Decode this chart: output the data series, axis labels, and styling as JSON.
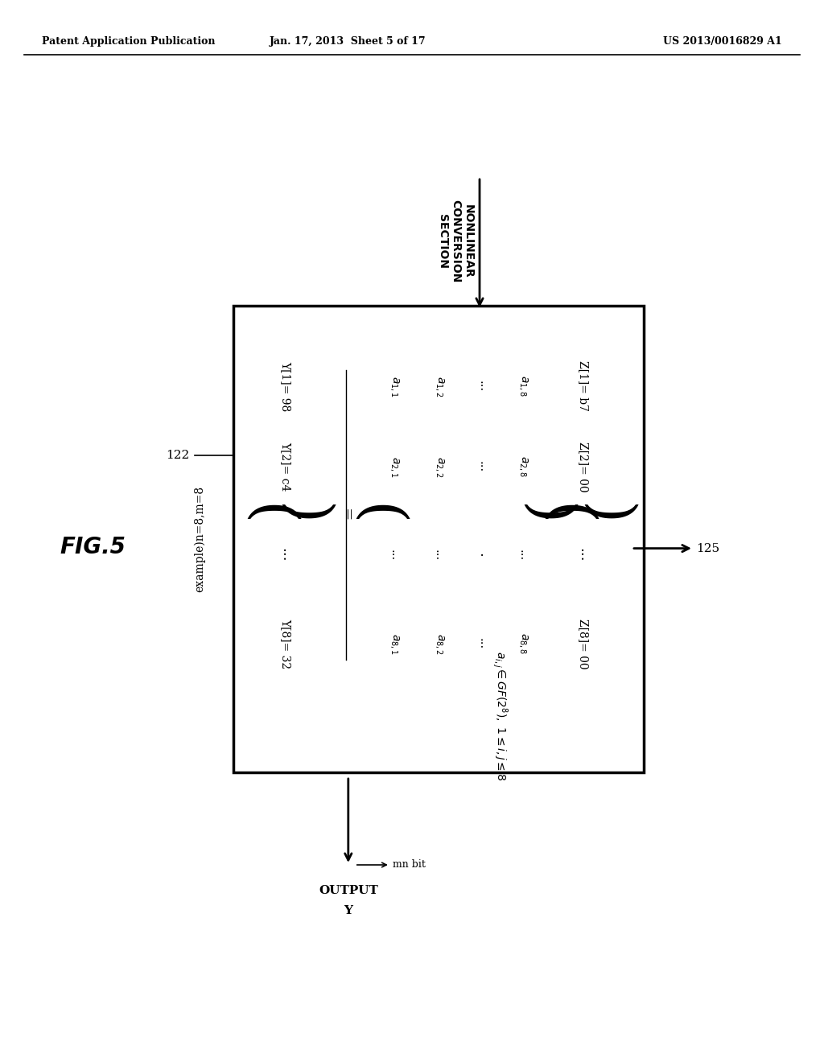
{
  "bg_color": "#ffffff",
  "header_left": "Patent Application Publication",
  "header_mid": "Jan. 17, 2013  Sheet 5 of 17",
  "header_right": "US 2013/0016829 A1",
  "fig_label": "FIG.5"
}
